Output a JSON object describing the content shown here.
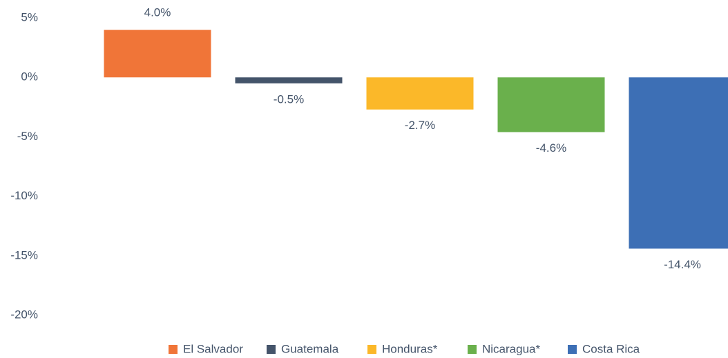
{
  "chart_data": {
    "type": "bar",
    "categories": [
      "El Salvador",
      "Guatemala",
      "Honduras*",
      "Nicaragua*",
      "Costa Rica"
    ],
    "values": [
      4.0,
      -0.5,
      -2.7,
      -4.6,
      -14.4
    ],
    "value_labels": [
      "4.0%",
      "-0.5%",
      "-2.7%",
      "-4.6%",
      "-14.4%"
    ],
    "colors": [
      "#f07538",
      "#44546a",
      "#fbb829",
      "#6ab04c",
      "#3d6fb5"
    ],
    "ylim": [
      -20,
      5
    ],
    "yticks": [
      {
        "value": 5,
        "label": "5%"
      },
      {
        "value": 0,
        "label": "0%"
      },
      {
        "value": -5,
        "label": "-5%"
      },
      {
        "value": -10,
        "label": "-10%"
      },
      {
        "value": -15,
        "label": "-15%"
      },
      {
        "value": -20,
        "label": "-20%"
      }
    ],
    "grid": false,
    "legend": "bottom"
  }
}
